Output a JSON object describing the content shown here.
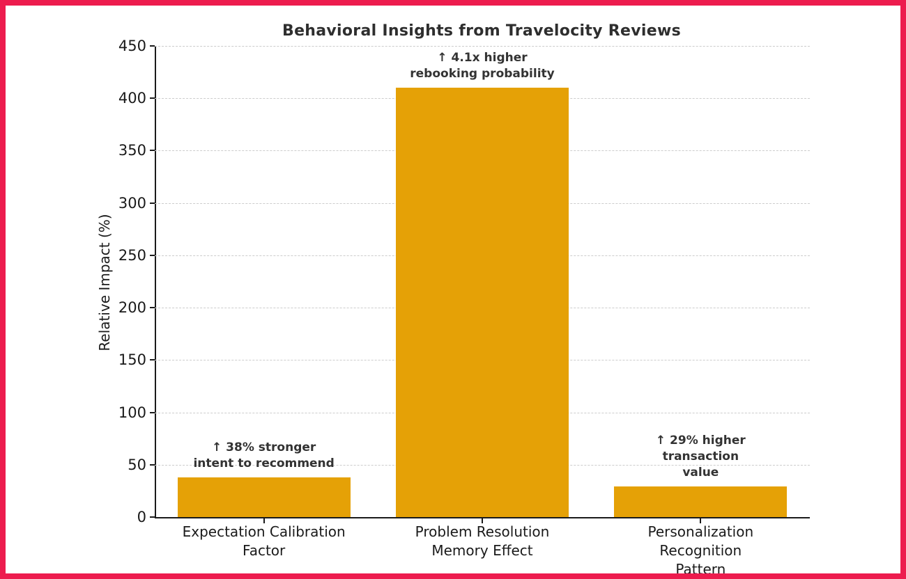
{
  "frame": {
    "border_color": "#ED1C4E",
    "background_color": "#ffffff"
  },
  "chart_data": {
    "type": "bar",
    "title": "Behavioral Insights from Travelocity Reviews",
    "xlabel": "",
    "ylabel": "Relative Impact (%)",
    "ylim": [
      0,
      450
    ],
    "ytick_step": 50,
    "yticks": [
      0,
      50,
      100,
      150,
      200,
      250,
      300,
      350,
      400,
      450
    ],
    "grid": "horizontal-dashed",
    "grid_color": "#cccccc",
    "bar_color": "#E5A106",
    "legend": "none",
    "categories": [
      "Expectation Calibration\nFactor",
      "Problem Resolution\nMemory Effect",
      "Personalization Recognition\nPattern"
    ],
    "values": [
      38,
      410,
      29
    ],
    "annotations": [
      "↑ 38% stronger\nintent to recommend",
      "↑ 4.1x higher\nrebooking probability",
      "↑ 29% higher\ntransaction value"
    ]
  }
}
